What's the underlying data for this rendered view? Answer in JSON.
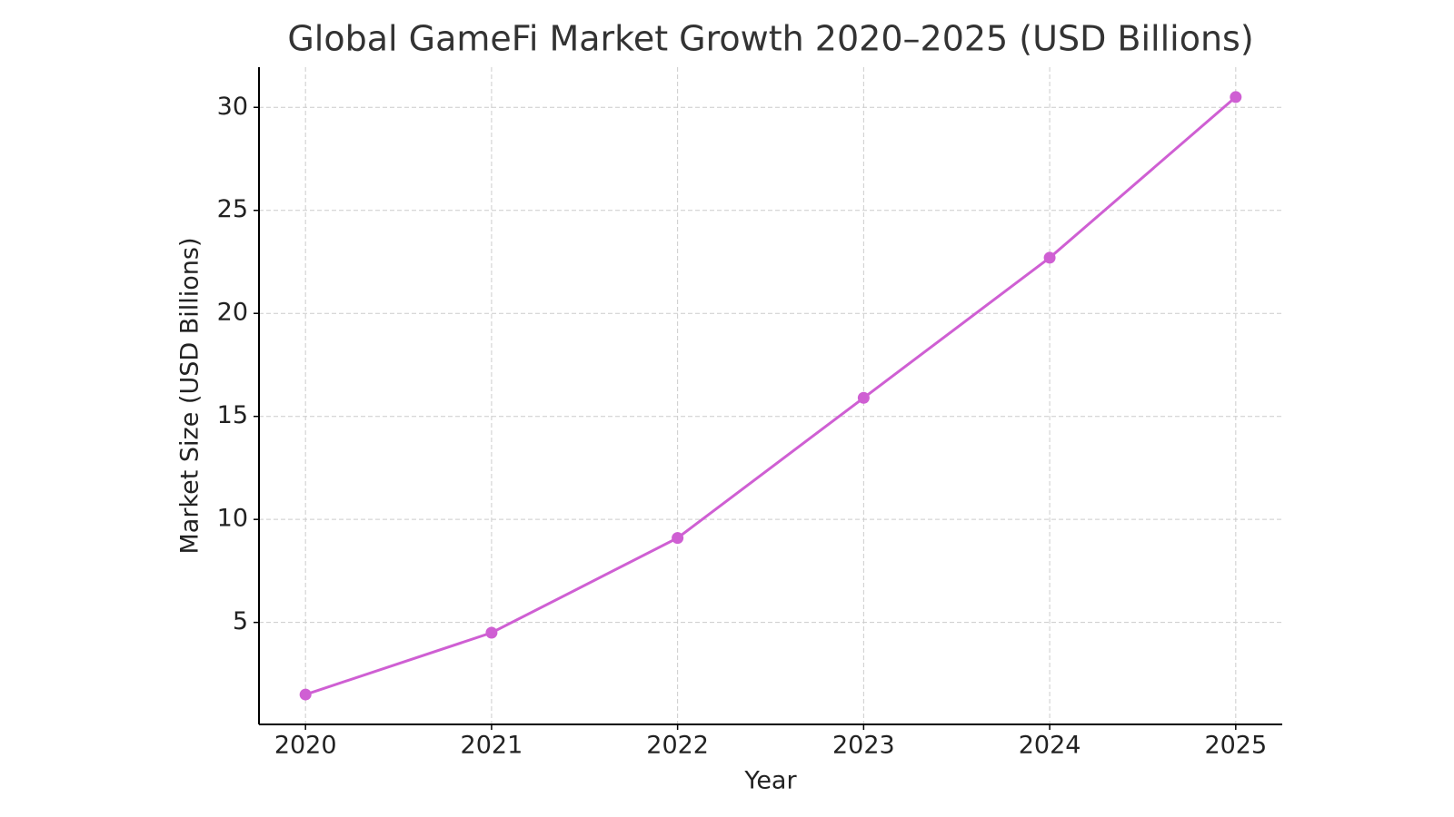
{
  "chart_data": {
    "type": "line",
    "title": "Global GameFi Market Growth 2020–2025 (USD Billions)",
    "x_label": "Year",
    "y_label": "Market Size (USD Billions)",
    "x": [
      2020,
      2021,
      2022,
      2023,
      2024,
      2025
    ],
    "series": [
      {
        "name": "Market Size",
        "color": "#cf5fd3",
        "values": [
          1.5,
          4.5,
          9.1,
          15.9,
          22.7,
          30.5
        ]
      }
    ],
    "xlim": [
      2019.75,
      2025.25
    ],
    "xticks": [
      2020,
      2021,
      2022,
      2023,
      2024,
      2025
    ],
    "ylim": [
      0.05,
      31.95
    ],
    "yticks": [
      5,
      10,
      15,
      20,
      25,
      30
    ],
    "grid": true
  }
}
